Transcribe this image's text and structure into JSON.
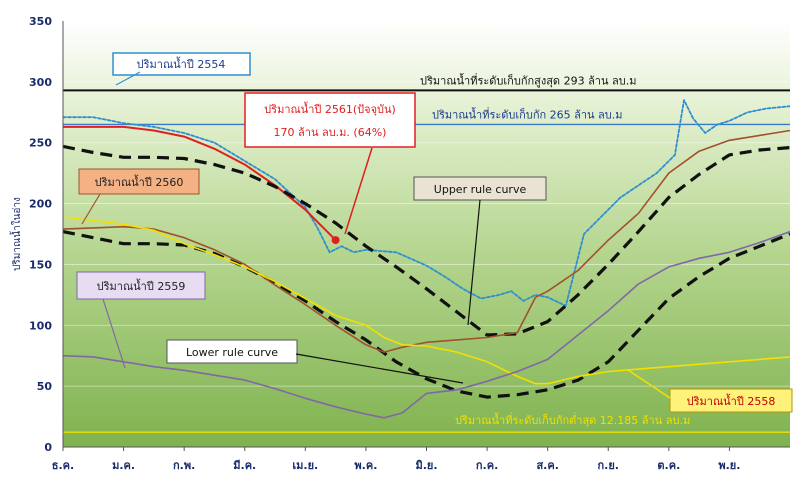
{
  "chart_data": {
    "type": "line",
    "ylabel": "ปริมาณน้ำในอ่าง",
    "ylim": [
      0,
      350
    ],
    "yticks": [
      0,
      50,
      100,
      150,
      200,
      250,
      300,
      350
    ],
    "months": [
      "ธ.ค.",
      "ม.ค.",
      "ก.พ.",
      "มี.ค.",
      "เม.ย.",
      "พ.ค.",
      "มิ.ย.",
      "ก.ค.",
      "ส.ค.",
      "ก.ย.",
      "ต.ค.",
      "พ.ย."
    ],
    "xlim": [
      0,
      12
    ],
    "grid": true,
    "series": [
      {
        "key": "y2554",
        "name": "ปริมาณน้ำปี 2554",
        "color": "#2e8fd0",
        "style": "dotted",
        "x": [
          0,
          0.5,
          1,
          1.5,
          2,
          2.5,
          3,
          3.5,
          4,
          4.2,
          4.4,
          4.6,
          4.8,
          5,
          5.5,
          6,
          6.3,
          6.6,
          6.9,
          7.2,
          7.4,
          7.6,
          7.8,
          8,
          8.3,
          8.6,
          8.9,
          9.2,
          9.5,
          9.8,
          10.1,
          10.25,
          10.4,
          10.6,
          10.8,
          11,
          11.3,
          11.6,
          12
        ],
        "y": [
          271,
          271,
          266,
          263,
          258,
          250,
          235,
          220,
          197,
          180,
          160,
          165,
          160,
          162,
          160,
          149,
          140,
          130,
          122,
          125,
          128,
          120,
          125,
          123,
          116,
          175,
          190,
          205,
          215,
          225,
          240,
          285,
          270,
          258,
          265,
          268,
          275,
          278,
          280
        ]
      },
      {
        "key": "y2561",
        "name": "ปริมาณน้ำปี 2561(ปัจจุบัน)",
        "color": "#e02020",
        "style": "solid",
        "x": [
          0,
          0.5,
          1,
          1.5,
          2,
          2.5,
          3,
          3.5,
          4,
          4.3,
          4.5
        ],
        "y": [
          263,
          263,
          263,
          260,
          255,
          245,
          232,
          215,
          195,
          180,
          170
        ]
      },
      {
        "key": "upper",
        "name": "Upper rule curve",
        "color": "#111111",
        "style": "dashed",
        "x": [
          0,
          0.5,
          1,
          1.5,
          2,
          2.5,
          3,
          3.5,
          4,
          4.5,
          5,
          5.5,
          6,
          6.5,
          7,
          7.5,
          8,
          8.5,
          9,
          9.5,
          10,
          10.5,
          11,
          11.5,
          12
        ],
        "y": [
          247,
          242,
          238,
          238,
          237,
          232,
          225,
          214,
          200,
          184,
          165,
          148,
          130,
          111,
          92,
          93,
          103,
          125,
          150,
          177,
          205,
          224,
          240,
          244,
          246
        ]
      },
      {
        "key": "lower",
        "name": "Lower rule curve",
        "color": "#111111",
        "style": "dashed",
        "x": [
          0,
          0.5,
          1,
          1.5,
          2,
          2.5,
          3,
          3.5,
          4,
          4.5,
          5,
          5.5,
          6,
          6.5,
          7,
          7.5,
          8,
          8.5,
          9,
          9.5,
          10,
          10.5,
          11,
          11.5,
          12
        ],
        "y": [
          177,
          172,
          167,
          167,
          166,
          159,
          148,
          135,
          120,
          103,
          88,
          70,
          56,
          46,
          41,
          43,
          47,
          55,
          70,
          96,
          122,
          140,
          155,
          165,
          175
        ]
      },
      {
        "key": "y2560",
        "name": "ปริมาณน้ำปี 2560",
        "color": "#a0522d",
        "style": "solid",
        "x": [
          0,
          0.5,
          1,
          1.5,
          2,
          2.5,
          3,
          3.5,
          4,
          4.5,
          5,
          5.3,
          5.6,
          6,
          6.5,
          7,
          7.5,
          7.8,
          8,
          8.5,
          9,
          9.5,
          10,
          10.5,
          11,
          11.5,
          12
        ],
        "y": [
          179,
          180,
          181,
          179,
          172,
          162,
          150,
          133,
          117,
          100,
          84,
          78,
          82,
          86,
          88,
          90,
          94,
          123,
          128,
          145,
          170,
          192,
          225,
          243,
          252,
          256,
          260
        ]
      },
      {
        "key": "y2558",
        "name": "ปริมาณน้ำปี 2558",
        "color": "#f2e000",
        "style": "solid",
        "x": [
          0,
          0.5,
          1,
          1.5,
          2,
          2.5,
          3,
          3.5,
          4,
          4.5,
          5,
          5.3,
          5.6,
          6,
          6.5,
          7,
          7.5,
          7.8,
          8,
          8.5,
          9,
          9.5,
          10,
          10.5,
          11,
          11.5,
          12
        ],
        "y": [
          189,
          186,
          183,
          178,
          167,
          158,
          148,
          136,
          122,
          108,
          100,
          90,
          84,
          83,
          78,
          70,
          58,
          52,
          52,
          58,
          62,
          64,
          66,
          68,
          70,
          72,
          74
        ]
      },
      {
        "key": "y2559",
        "name": "ปริมาณน้ำปี 2559",
        "color": "#8068a8",
        "style": "solid",
        "x": [
          0,
          0.5,
          1,
          1.5,
          2,
          2.5,
          3,
          3.5,
          4,
          4.5,
          5,
          5.3,
          5.6,
          6,
          6.5,
          7,
          7.5,
          8,
          8.5,
          9,
          9.5,
          10,
          10.5,
          11,
          11.5,
          12
        ],
        "y": [
          75,
          74,
          70,
          66,
          63,
          59,
          55,
          48,
          40,
          33,
          27,
          24,
          28,
          44,
          47,
          54,
          62,
          72,
          92,
          112,
          134,
          148,
          155,
          160,
          168,
          177
        ]
      }
    ],
    "reference_lines": [
      {
        "key": "max",
        "label": "ปริมาณน้ำที่ระดับเก็บกักสูงสุด   293   ล้าน ลบ.ม",
        "value": 293,
        "color": "#111111"
      },
      {
        "key": "normal",
        "label": "ปริมาณน้ำที่ระดับเก็บกัก 265 ล้าน ลบ.ม",
        "value": 265,
        "color": "#3a78c8"
      },
      {
        "key": "min",
        "label": "ปริมาณน้ำที่ระดับเก็บกักต่ำสุด 12.185 ล้าน ลบ.ม",
        "value": 12.185,
        "color": "#f2e000"
      }
    ],
    "current_point": {
      "x": 4.5,
      "y": 170,
      "color": "#e02020"
    },
    "annotations": {
      "y2554": "ปริมาณน้ำปี 2554",
      "current_line1": "ปริมาณน้ำปี 2561(ปัจจุบัน)",
      "current_line2": "170 ล้าน ลบ.ม. (64%)",
      "y2560": "ปริมาณน้ำปี 2560",
      "upper": "Upper rule curve",
      "lower": "Lower rule curve",
      "y2559": "ปริมาณน้ำปี 2559",
      "y2558": "ปริมาณน้ำปี 2558"
    }
  }
}
